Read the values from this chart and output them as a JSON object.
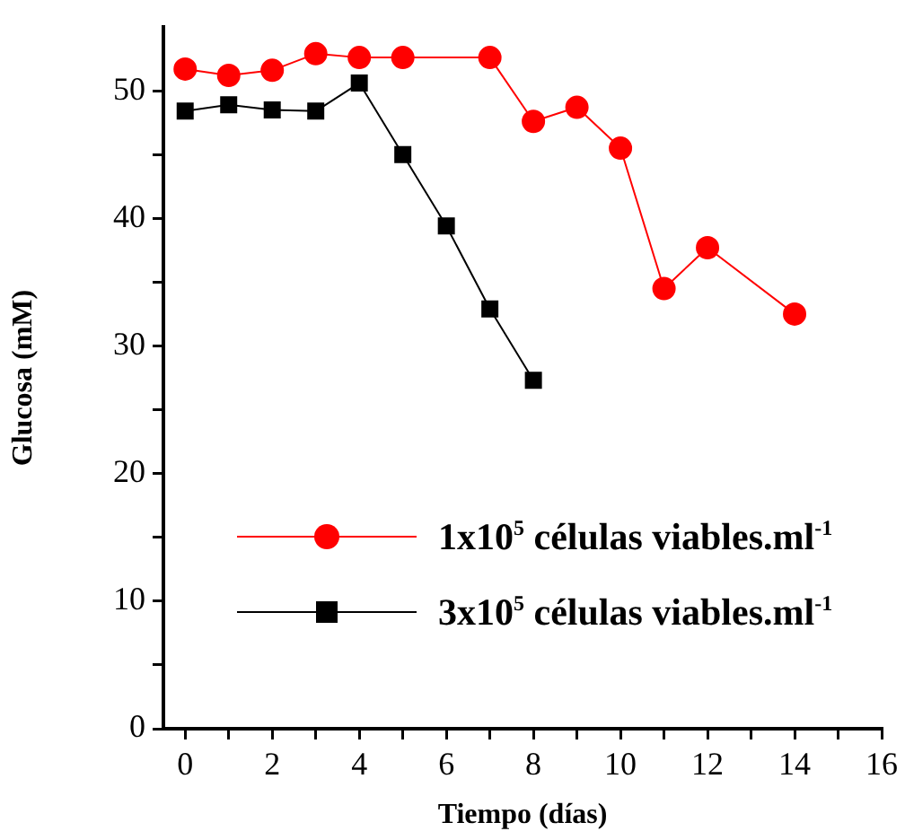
{
  "chart_data": {
    "type": "line",
    "xlabel": "Tiempo (días)",
    "ylabel": "Glucosa (mM)",
    "xlim": [
      -0.5,
      16
    ],
    "xticks": [
      0,
      {
        "value": 1,
        "label": null
      },
      2,
      {
        "value": 3,
        "label": null
      },
      4,
      {
        "value": 5,
        "label": null
      },
      6,
      {
        "value": 7,
        "label": null
      },
      8,
      {
        "value": 9,
        "label": null
      },
      10,
      {
        "value": 11,
        "label": null
      },
      12,
      {
        "value": 13,
        "label": null
      },
      14,
      {
        "value": 15,
        "label": null
      },
      16
    ],
    "ylim": [
      0,
      55
    ],
    "yticks": [
      0,
      {
        "value": 5,
        "label": null
      },
      10,
      {
        "value": 15,
        "label": null
      },
      20,
      {
        "value": 25,
        "label": null
      },
      30,
      {
        "value": 35,
        "label": null
      },
      40,
      {
        "value": 45,
        "label": null
      },
      50
    ],
    "grid": false,
    "legend": "bottom right",
    "line_style": "solid",
    "series": [
      {
        "name": "1x10$^{5}$ células viables.ml$^{-1}$",
        "color": "#ff0000",
        "marker": "circle",
        "x": [
          0,
          1,
          2,
          3,
          4,
          5,
          7,
          8,
          9,
          10,
          11,
          12,
          14
        ],
        "values": [
          51.7,
          51.2,
          51.6,
          52.9,
          52.6,
          52.6,
          52.6,
          47.6,
          48.7,
          45.5,
          34.5,
          37.7,
          32.5
        ]
      },
      {
        "name": "3x10$^{5}$ células viables.ml$^{-1}$",
        "color": "#000000",
        "marker": "square",
        "x": [
          0,
          1,
          2,
          3,
          4,
          5,
          6,
          7,
          8
        ],
        "values": [
          48.4,
          48.9,
          48.5,
          48.4,
          50.6,
          45.0,
          39.4,
          32.9,
          27.3
        ]
      }
    ]
  }
}
